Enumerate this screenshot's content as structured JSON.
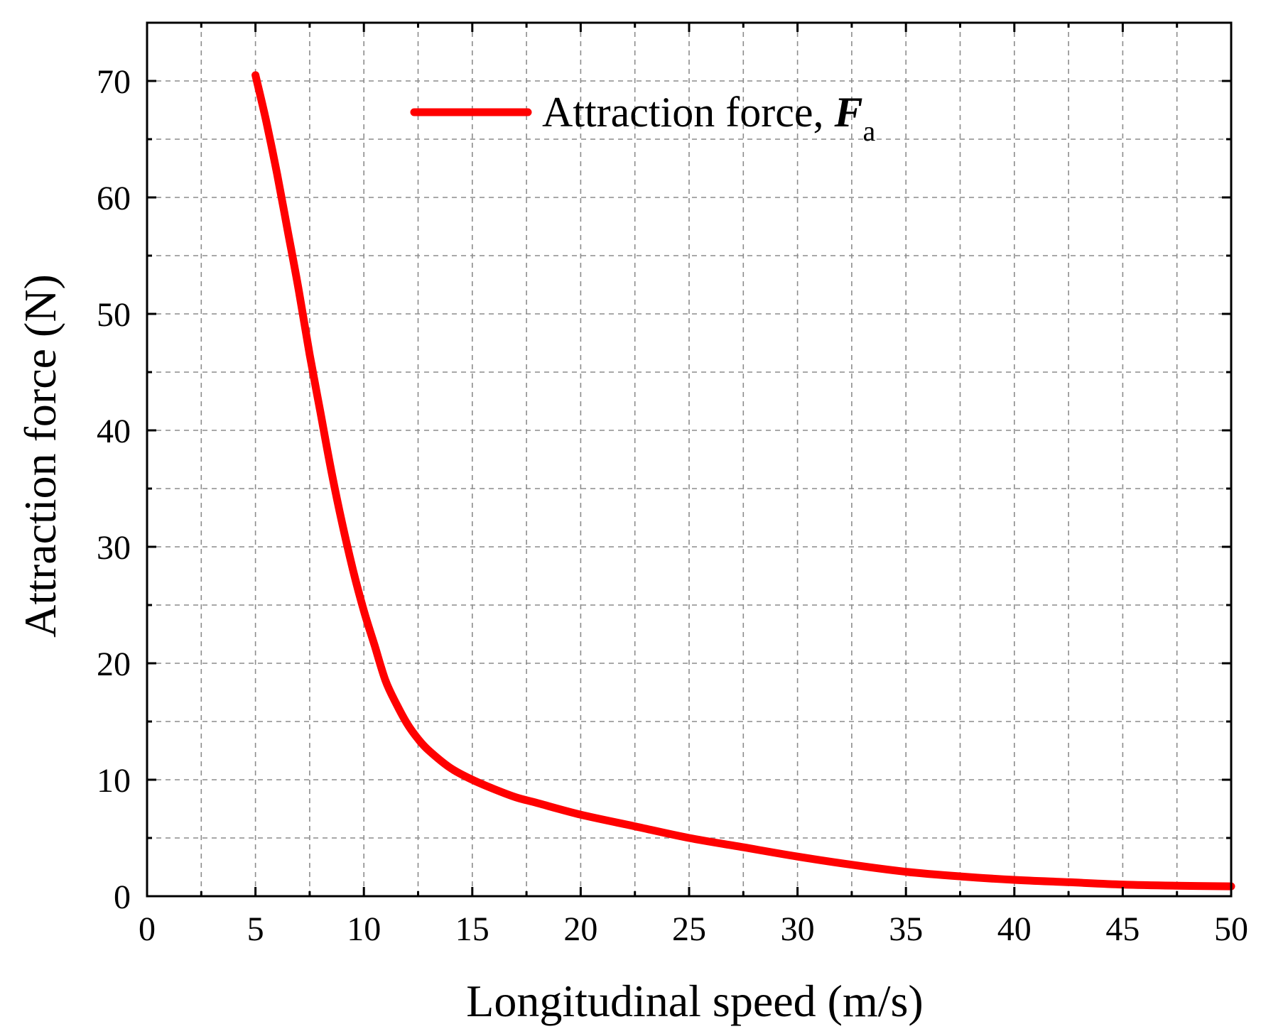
{
  "chart_data": {
    "type": "line",
    "title": "",
    "xlabel": "Longitudinal speed (m/s)",
    "ylabel": "Attraction force (N)",
    "xlim": [
      0,
      50
    ],
    "ylim": [
      0,
      75
    ],
    "x_ticks": [
      0,
      5,
      10,
      15,
      20,
      25,
      30,
      35,
      40,
      45,
      50
    ],
    "x_tick_labels": [
      "0",
      "5",
      "10",
      "15",
      "20",
      "25",
      "30",
      "35",
      "40",
      "45",
      "50"
    ],
    "y_ticks": [
      0,
      10,
      20,
      30,
      40,
      50,
      60,
      70
    ],
    "y_tick_labels": [
      "0",
      "10",
      "20",
      "30",
      "40",
      "50",
      "60",
      "70"
    ],
    "grid": true,
    "legend_position": "top-center",
    "colors": {
      "series": "#ff0000",
      "axis": "#000000",
      "grid": "#8c8c8c"
    },
    "series": [
      {
        "name": "Attraction force, F_a",
        "legend_label": "Attraction force, ",
        "legend_symbol": "F",
        "legend_subscript": "a",
        "color": "#ff0000",
        "x": [
          5,
          5.5,
          6,
          6.5,
          7,
          7.5,
          8,
          8.5,
          9,
          9.5,
          10,
          10.5,
          11,
          11.5,
          12,
          12.5,
          13,
          14,
          15,
          16,
          17,
          18,
          20,
          22.5,
          25,
          27.5,
          30,
          32.5,
          35,
          37.5,
          40,
          42.5,
          45,
          47.5,
          50
        ],
        "y": [
          70.5,
          66.5,
          62.0,
          57.0,
          52.0,
          46.5,
          41.5,
          36.5,
          32.0,
          28.0,
          24.5,
          21.5,
          18.5,
          16.5,
          14.8,
          13.5,
          12.5,
          11.0,
          10.0,
          9.2,
          8.5,
          8.0,
          7.0,
          6.0,
          5.0,
          4.2,
          3.4,
          2.7,
          2.1,
          1.7,
          1.4,
          1.2,
          1.0,
          0.9,
          0.85
        ]
      }
    ]
  }
}
